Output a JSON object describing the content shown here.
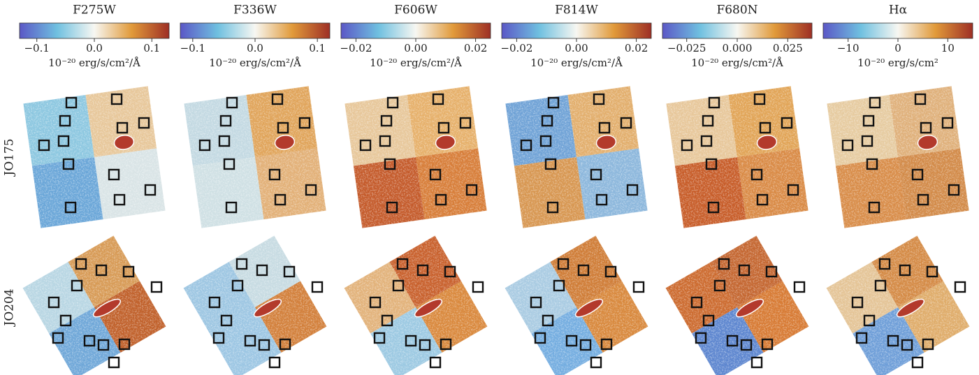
{
  "chart_data": [
    {
      "type": "colorbar",
      "title": "F275W",
      "xlim": [
        -0.13,
        0.13
      ],
      "xticks": [
        {
          "value": -0.1,
          "label": "−0.1"
        },
        {
          "value": 0,
          "label": "0.0"
        },
        0.1
      ],
      "unit": "10⁻²⁰ erg/s/cm²/Å"
    },
    {
      "type": "colorbar",
      "title": "F336W",
      "xlim": [
        -0.12,
        0.12
      ],
      "xticks": [
        {
          "value": -0.1,
          "label": "−0.1"
        },
        {
          "value": 0,
          "label": "0.0"
        },
        0.1
      ],
      "unit": "10⁻²⁰ erg/s/cm²/Å"
    },
    {
      "type": "colorbar",
      "title": "F606W",
      "xlim": [
        -0.025,
        0.025
      ],
      "xticks": [
        {
          "value": -0.02,
          "label": "−0.02"
        },
        {
          "value": 0,
          "label": "0.00"
        },
        0.02
      ],
      "unit": "10⁻²⁰ erg/s/cm²/Å"
    },
    {
      "type": "colorbar",
      "title": "F814W",
      "xlim": [
        -0.025,
        0.025
      ],
      "xticks": [
        {
          "value": -0.02,
          "label": "−0.02"
        },
        {
          "value": 0,
          "label": "0.00"
        },
        0.02
      ],
      "unit": "10⁻²⁰ erg/s/cm²/Å"
    },
    {
      "type": "colorbar",
      "title": "F680N",
      "xlim": [
        -0.037,
        0.037
      ],
      "xticks": [
        {
          "value": -0.025,
          "label": "−0.025"
        },
        {
          "value": 0,
          "label": "0.000"
        },
        0.025
      ],
      "unit": "10⁻²⁰ erg/s/cm²/Å"
    },
    {
      "type": "colorbar",
      "title": "Hα",
      "xlim": [
        -15,
        15
      ],
      "xticks": [
        {
          "value": -10,
          "label": "−10"
        },
        0,
        10
      ],
      "unit": "10⁻²⁰ erg/s/cm²"
    }
  ],
  "row_labels": [
    "JO175",
    "JO204"
  ]
}
